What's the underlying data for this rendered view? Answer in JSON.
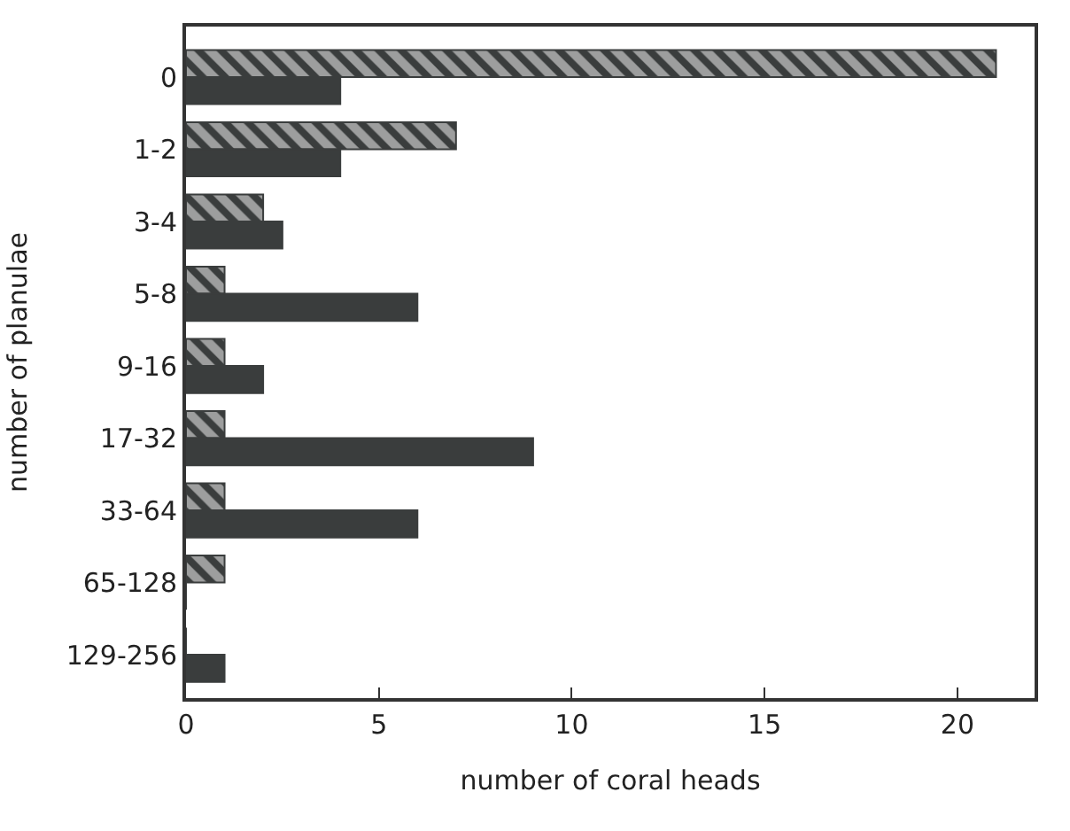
{
  "chart_data": {
    "type": "bar",
    "orientation": "horizontal",
    "categories": [
      "0",
      "1-2",
      "3-4",
      "5-8",
      "9-16",
      "17-32",
      "33-64",
      "65-128",
      "129-256"
    ],
    "series": [
      {
        "color": "#3a3d3d",
        "values": [
          21,
          7,
          2,
          1,
          1,
          1,
          1,
          1,
          0
        ]
      },
      {
        "color": "#3a3d3d",
        "values": [
          4,
          4,
          2.5,
          6,
          2,
          9,
          6,
          0,
          1
        ]
      }
    ],
    "xlim": [
      0,
      22
    ],
    "xticks": [
      0,
      5,
      10,
      15,
      20
    ],
    "xlabel": "number of coral heads",
    "ylabel": "number of planulae"
  }
}
